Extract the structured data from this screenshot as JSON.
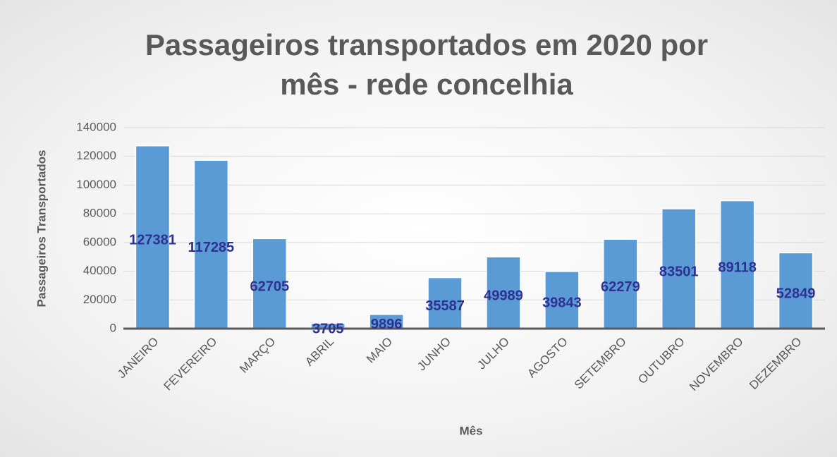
{
  "chart_data": {
    "type": "bar",
    "title": "Passageiros transportados em 2020 por mês - rede concelhia",
    "x_label": "Mês",
    "y_label": "Passageiros Transportados",
    "categories": [
      "JANEIRO",
      "FEVEREIRO",
      "MARÇO",
      "ABRIL",
      "MAIO",
      "JUNHO",
      "JULHO",
      "AGOSTO",
      "SETEMBRO",
      "OUTUBRO",
      "NOVEMBRO",
      "DEZEMBRO"
    ],
    "values": [
      127381,
      117285,
      62705,
      3705,
      9896,
      35587,
      49989,
      39843,
      62279,
      83501,
      89118,
      52849
    ],
    "color": "#5b9bd5",
    "ylim": [
      0,
      140000
    ],
    "yticks": [
      0,
      20000,
      40000,
      60000,
      80000,
      100000,
      120000,
      140000
    ],
    "grid": true
  }
}
